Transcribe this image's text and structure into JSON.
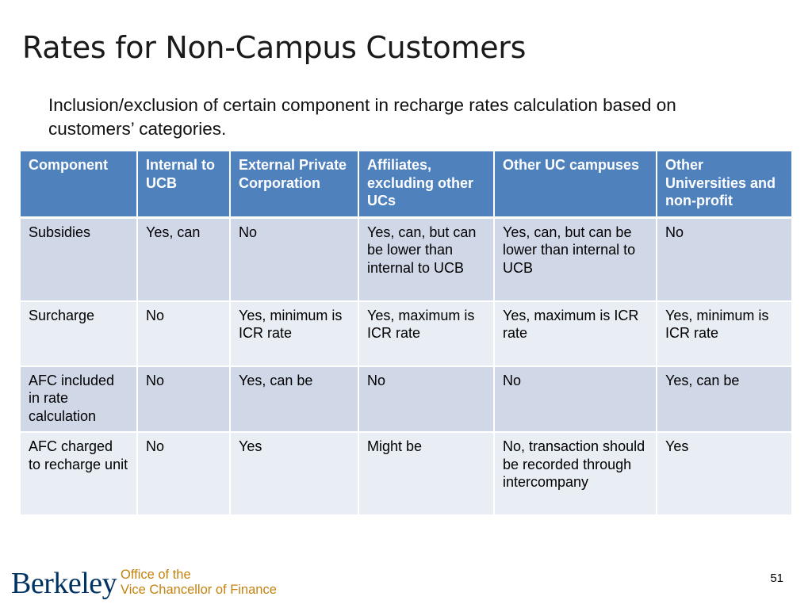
{
  "slide": {
    "title": "Rates for Non-Campus Customers",
    "subtitle": "Inclusion/exclusion of certain component in recharge rates calculation based on customers’ categories.",
    "page_number": "51"
  },
  "table": {
    "headers": [
      "Component",
      "Internal to UCB",
      "External Private Corporation",
      "Affiliates, excluding other UCs",
      "Other UC campuses",
      "Other Universities and non-profit"
    ],
    "rows": [
      [
        "Subsidies",
        "Yes, can",
        "No",
        "Yes, can, but can be lower than internal to UCB",
        "Yes, can, but can be lower than internal to UCB",
        "No"
      ],
      [
        "Surcharge",
        "No",
        "Yes, minimum is ICR rate",
        "Yes, maximum is ICR rate",
        "Yes, maximum is ICR rate",
        "Yes, minimum is ICR rate"
      ],
      [
        "AFC included in rate calculation",
        "No",
        "Yes, can be",
        "No",
        "No",
        "Yes, can be"
      ],
      [
        "AFC charged to recharge unit",
        "No",
        "Yes",
        "Might be",
        "No, transaction should be recorded through intercompany",
        "Yes"
      ]
    ]
  },
  "footer": {
    "logo_text": "Berkeley",
    "office_line1": "Office of the",
    "office_line2": "Vice Chancellor of Finance"
  },
  "colors": {
    "header_bg": "#4f81bd",
    "row_odd_bg": "#d0d8e8",
    "row_even_bg": "#e9edf4",
    "berkeley_blue": "#003262",
    "office_gold": "#c4820e"
  }
}
